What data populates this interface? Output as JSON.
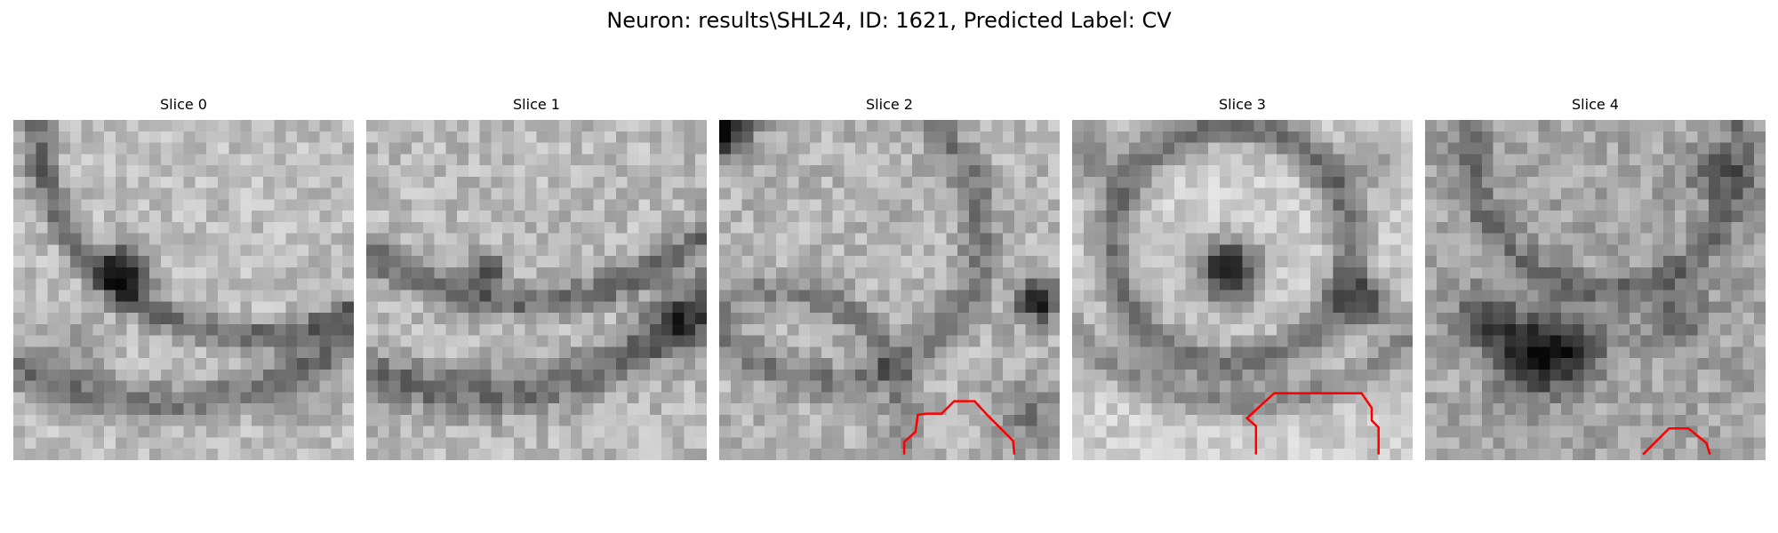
{
  "figure": {
    "title": "Neuron: results\\SHL24, ID: 1621, Predicted Label: CV"
  },
  "panels": [
    {
      "title": "Slice 0",
      "colormap": "gray",
      "contour": null,
      "features": {
        "base": 190,
        "noise": 28,
        "seed": 11,
        "rings": [
          {
            "cx": 21,
            "cy": 0,
            "r": 19,
            "w": 1.3,
            "d": 90
          },
          {
            "cx": 13,
            "cy": -2,
            "r": 27,
            "w": 1.8,
            "d": 70
          }
        ],
        "blobs": [
          {
            "cx": 9.8,
            "cy": 13.3,
            "r": 2.2,
            "d": 160
          },
          {
            "cx": 5,
            "cy": 20,
            "r": 3.5,
            "d": 40
          },
          {
            "cx": 26,
            "cy": 24,
            "r": 3,
            "d": 30
          }
        ]
      }
    },
    {
      "title": "Slice 1",
      "colormap": "gray",
      "contour": null,
      "features": {
        "base": 185,
        "noise": 30,
        "seed": 23,
        "rings": [
          {
            "cx": 14,
            "cy": -8,
            "r": 24,
            "w": 1.4,
            "d": 80
          },
          {
            "cx": 10,
            "cy": -4,
            "r": 28,
            "w": 2.0,
            "d": 80
          }
        ],
        "blobs": [
          {
            "cx": 10.7,
            "cy": 13.3,
            "r": 1.4,
            "d": 130
          },
          {
            "cx": 28,
            "cy": 18,
            "r": 3,
            "d": 70
          }
        ]
      }
    },
    {
      "title": "Slice 2",
      "colormap": "gray",
      "contour": [
        [
          16.3,
          29.5
        ],
        [
          16.3,
          28.4
        ],
        [
          17.3,
          27.5
        ],
        [
          17.5,
          26.0
        ],
        [
          18.3,
          25.9
        ],
        [
          19.6,
          25.9
        ],
        [
          20.7,
          24.8
        ],
        [
          22.5,
          24.8
        ],
        [
          23.7,
          26.1
        ],
        [
          25.9,
          28.3
        ],
        [
          26.0,
          29.5
        ]
      ],
      "features": {
        "base": 180,
        "noise": 30,
        "seed": 37,
        "rings": [
          {
            "cx": 10,
            "cy": 10,
            "r": 13,
            "w": 1.5,
            "d": 60
          },
          {
            "cx": 5,
            "cy": 26,
            "r": 11,
            "w": 1.5,
            "d": 50
          }
        ],
        "blobs": [
          {
            "cx": 28,
            "cy": 16,
            "r": 1.8,
            "d": 150
          },
          {
            "cx": 0.5,
            "cy": 1,
            "r": 2,
            "d": 110
          },
          {
            "cx": 27.5,
            "cy": 26,
            "r": 3,
            "d": 60
          }
        ]
      }
    },
    {
      "title": "Slice 3",
      "colormap": "gray",
      "contour": [
        [
          16.2,
          29.5
        ],
        [
          16.2,
          27.0
        ],
        [
          15.4,
          26.3
        ],
        [
          17.8,
          24.1
        ],
        [
          25.5,
          24.1
        ],
        [
          26.4,
          25.4
        ],
        [
          26.4,
          26.5
        ],
        [
          27.0,
          27.1
        ],
        [
          27.0,
          29.5
        ]
      ],
      "features": {
        "base": 205,
        "noise": 24,
        "seed": 53,
        "rings": [
          {
            "cx": 14,
            "cy": 11,
            "r": 10.5,
            "w": 1.8,
            "d": 90
          },
          {
            "cx": 15,
            "cy": 4,
            "r": 21,
            "w": 1.5,
            "d": 70
          }
        ],
        "blobs": [
          {
            "cx": 13.8,
            "cy": 13.3,
            "r": 2.6,
            "d": 190
          },
          {
            "cx": 26,
            "cy": 16,
            "r": 2.2,
            "d": 130
          },
          {
            "cx": 26,
            "cy": 4,
            "r": 2.5,
            "d": 60
          },
          {
            "cx": 1,
            "cy": 3,
            "r": 3,
            "d": 70
          }
        ]
      }
    },
    {
      "title": "Slice 4",
      "colormap": "gray",
      "contour": [
        [
          19.2,
          29.5
        ],
        [
          21.5,
          27.2
        ],
        [
          23.2,
          27.2
        ],
        [
          24.8,
          28.5
        ],
        [
          25.1,
          29.5
        ]
      ],
      "features": {
        "base": 165,
        "noise": 30,
        "seed": 71,
        "rings": [
          {
            "cx": 16,
            "cy": 3,
            "r": 12,
            "w": 1.6,
            "d": 50
          }
        ],
        "blobs": [
          {
            "cx": 9.5,
            "cy": 21,
            "r": 3.2,
            "d": 140
          },
          {
            "cx": 5.5,
            "cy": 17.5,
            "r": 2.5,
            "d": 110
          },
          {
            "cx": 13,
            "cy": 20,
            "r": 3,
            "d": 90
          },
          {
            "cx": 25.5,
            "cy": 4.6,
            "r": 2.2,
            "d": 80
          },
          {
            "cx": 22,
            "cy": 17,
            "r": 3,
            "d": 60
          }
        ]
      }
    }
  ]
}
